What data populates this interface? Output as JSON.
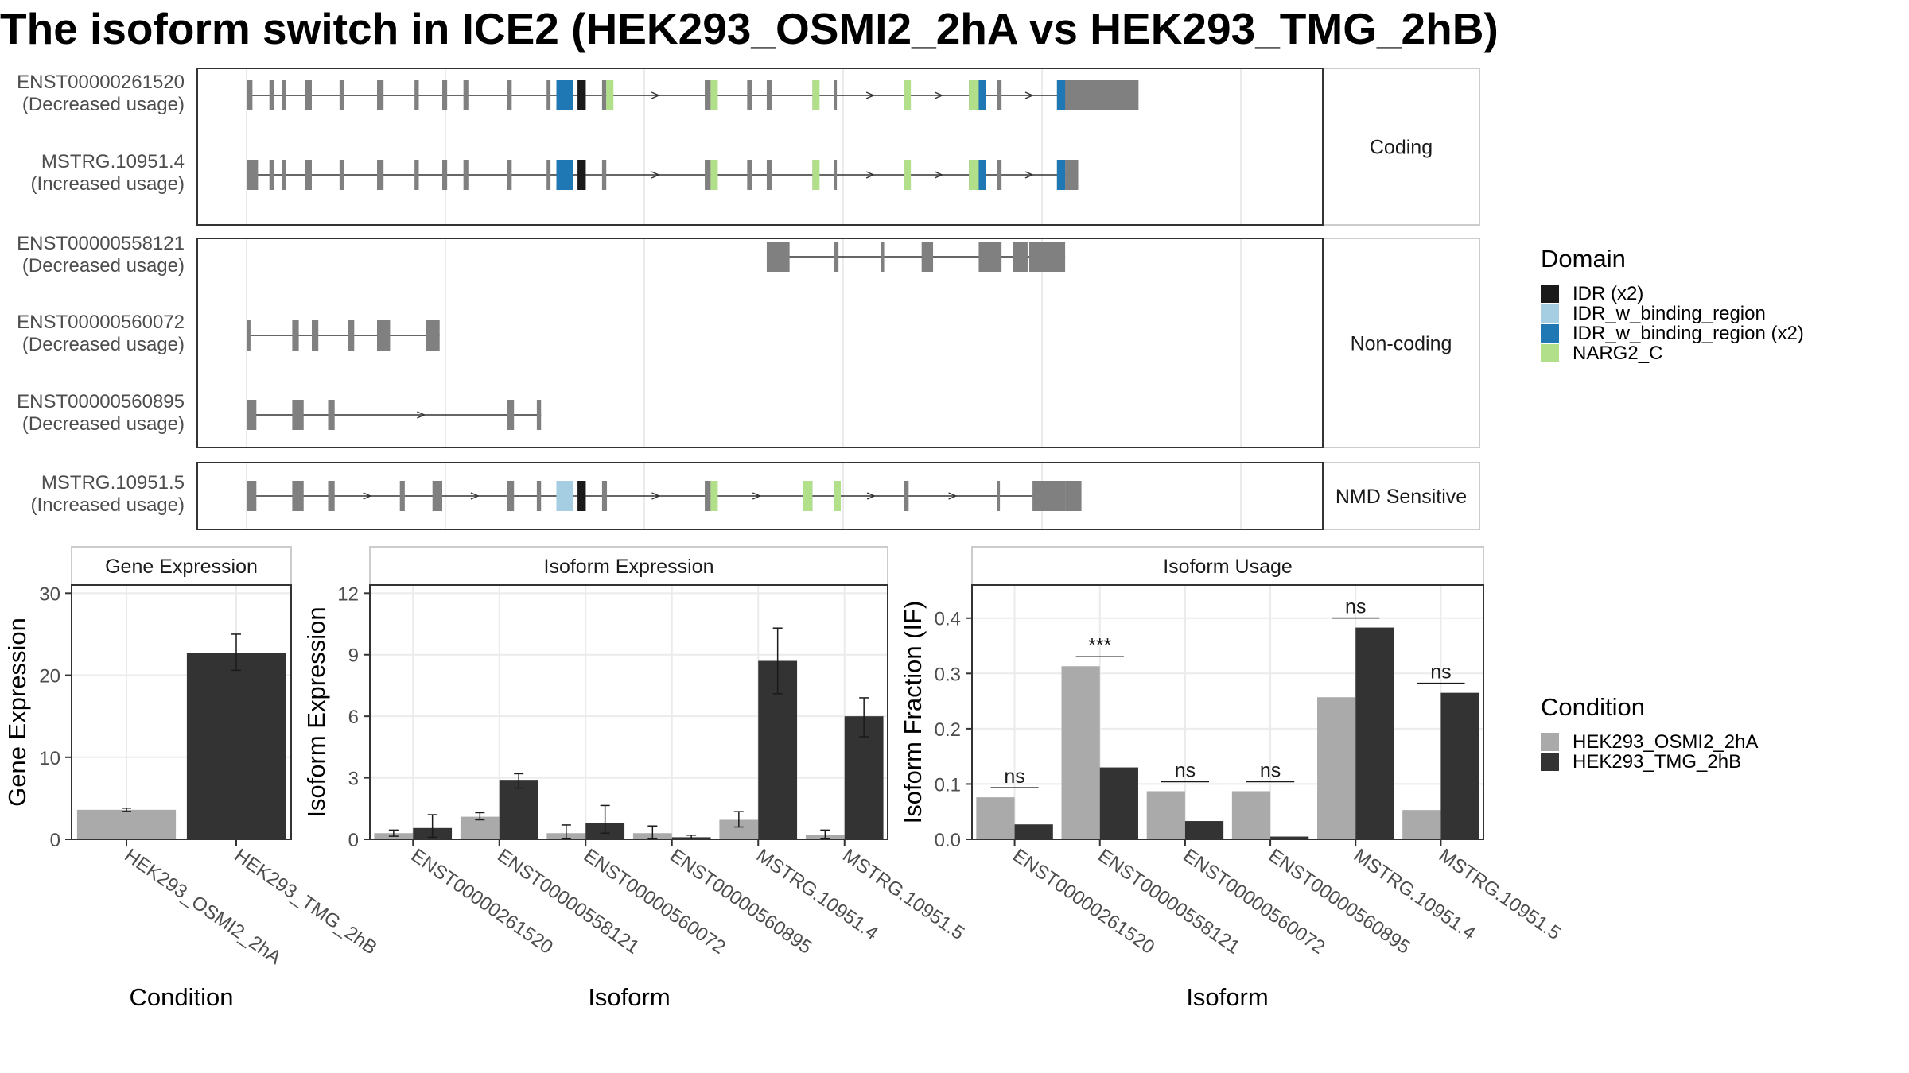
{
  "title": "The isoform switch in ICE2 (HEK293_OSMI2_2hA vs HEK293_TMG_2hB)",
  "colors": {
    "exon": "#808080",
    "IDR (x2)": "#1a1a1a",
    "IDR_w_binding_region": "#a6cee3",
    "IDR_w_binding_region (x2)": "#1f78b4",
    "NARG2_C": "#b2df8a",
    "cond_a": "#aaaaaa",
    "cond_b": "#333333",
    "panel_border": "#333333",
    "strip_border": "#cccccc",
    "grid": "#ebebeb"
  },
  "legend_domain": {
    "title": "Domain",
    "items": [
      "IDR (x2)",
      "IDR_w_binding_region",
      "IDR_w_binding_region (x2)",
      "NARG2_C"
    ]
  },
  "legend_condition": {
    "title": "Condition",
    "items": [
      "HEK293_OSMI2_2hA",
      "HEK293_TMG_2hB"
    ]
  },
  "chart_data": [
    {
      "type": "other",
      "name": "Transcript structures",
      "groups": [
        {
          "strip": "Coding",
          "transcripts": [
            {
              "id": "ENST00000261520",
              "note": "(Decreased usage)",
              "exons": [
                [
                  0,
                  1.8
                ],
                [
                  7,
                  8.3
                ],
                [
                  10.8,
                  12
                ],
                [
                  18,
                  20
                ],
                [
                  28.5,
                  30
                ],
                [
                  40,
                  42
                ],
                [
                  51.5,
                  52.8
                ],
                [
                  60,
                  61.5
                ],
                [
                  66.5,
                  68
                ],
                [
                  80,
                  81.3
                ],
                [
                  92,
                  93.2
                ],
                [
                  95,
                  100
                ],
                [
                  101.5,
                  104
                ],
                [
                  109,
                  110.3
                ],
                [
                  140.5,
                  142.3
                ],
                [
                  153.5,
                  155
                ],
                [
                  159.5,
                  161
                ],
                [
                  173.5,
                  175.5
                ],
                [
                  180,
                  181
                ],
                [
                  201.5,
                  203
                ],
                [
                  221.5,
                  224.5
                ],
                [
                  230,
                  231.5
                ],
                [
                  248.5,
                  255
                ],
                [
                  255,
                  273.5
                ]
              ],
              "domains": [
                {
                  "name": "IDR_w_binding_region (x2)",
                  "range": [
                    95,
                    100
                  ]
                },
                {
                  "name": "IDR (x2)",
                  "range": [
                    101.5,
                    104
                  ]
                },
                {
                  "name": "NARG2_C",
                  "range": [
                    110.3,
                    110.3
                  ]
                },
                {
                  "name": "NARG2_C",
                  "range": [
                    142.3,
                    142.3
                  ]
                },
                {
                  "name": "NARG2_C",
                  "range": [
                    173.5,
                    175.5
                  ]
                },
                {
                  "name": "NARG2_C",
                  "range": [
                    201.5,
                    203
                  ]
                },
                {
                  "name": "NARG2_C",
                  "range": [
                    221.5,
                    224.5
                  ]
                },
                {
                  "name": "IDR_w_binding_region (x2)",
                  "range": [
                    224.5,
                    225.5
                  ]
                },
                {
                  "name": "IDR_w_binding_region (x2)",
                  "range": [
                    248.5,
                    251
                  ]
                }
              ]
            },
            {
              "id": "MSTRG.10951.4",
              "note": "(Increased usage)",
              "exons": [
                [
                  0,
                  3.5
                ],
                [
                  7,
                  8.3
                ],
                [
                  10.8,
                  12
                ],
                [
                  18,
                  20
                ],
                [
                  28.5,
                  30
                ],
                [
                  40,
                  42
                ],
                [
                  51.5,
                  52.8
                ],
                [
                  60,
                  61.5
                ],
                [
                  66.5,
                  68
                ],
                [
                  80,
                  81.3
                ],
                [
                  92,
                  93.2
                ],
                [
                  95,
                  100
                ],
                [
                  101.5,
                  104
                ],
                [
                  109,
                  110.3
                ],
                [
                  140.5,
                  142.3
                ],
                [
                  153.5,
                  155
                ],
                [
                  159.5,
                  161
                ],
                [
                  173.5,
                  175.5
                ],
                [
                  180,
                  181
                ],
                [
                  201.5,
                  203
                ],
                [
                  221.5,
                  224.5
                ],
                [
                  230,
                  231.5
                ],
                [
                  248.5,
                  251
                ],
                [
                  251,
                  255
                ]
              ],
              "domains": [
                {
                  "name": "IDR_w_binding_region (x2)",
                  "range": [
                    95,
                    100
                  ]
                },
                {
                  "name": "IDR (x2)",
                  "range": [
                    101.5,
                    104
                  ]
                },
                {
                  "name": "NARG2_C",
                  "range": [
                    142.3,
                    142.3
                  ]
                },
                {
                  "name": "NARG2_C",
                  "range": [
                    173.5,
                    175.5
                  ]
                },
                {
                  "name": "NARG2_C",
                  "range": [
                    201.5,
                    203
                  ]
                },
                {
                  "name": "NARG2_C",
                  "range": [
                    221.5,
                    224.5
                  ]
                },
                {
                  "name": "IDR_w_binding_region (x2)",
                  "range": [
                    224.5,
                    225.5
                  ]
                },
                {
                  "name": "IDR_w_binding_region (x2)",
                  "range": [
                    248.5,
                    251
                  ]
                }
              ]
            }
          ]
        },
        {
          "strip": "Non-coding",
          "transcripts": [
            {
              "id": "ENST00000558121",
              "note": "(Decreased usage)",
              "exons": [
                [
                  159.5,
                  166.5
                ],
                [
                  180,
                  181.5
                ],
                [
                  194.5,
                  195.5
                ],
                [
                  207,
                  210.5
                ],
                [
                  224.5,
                  231.5
                ],
                [
                  235,
                  239.5
                ],
                [
                  240,
                  251
                ]
              ],
              "domains": []
            },
            {
              "id": "ENST00000560072",
              "note": "(Decreased usage)",
              "exons": [
                [
                  0,
                  1.2
                ],
                [
                  14,
                  16
                ],
                [
                  20,
                  22
                ],
                [
                  31,
                  33
                ],
                [
                  40,
                  44
                ],
                [
                  55,
                  59.2
                ]
              ],
              "domains": []
            },
            {
              "id": "ENST00000560895",
              "note": "(Decreased usage)",
              "exons": [
                [
                  0,
                  3
                ],
                [
                  14,
                  17.5
                ],
                [
                  25,
                  27
                ],
                [
                  80,
                  82
                ],
                [
                  89,
                  90.3
                ]
              ],
              "domains": []
            }
          ]
        },
        {
          "strip": "NMD Sensitive",
          "transcripts": [
            {
              "id": "MSTRG.10951.5",
              "note": "(Increased usage)",
              "exons": [
                [
                  0,
                  3
                ],
                [
                  14,
                  17.5
                ],
                [
                  25,
                  27
                ],
                [
                  47,
                  48.5
                ],
                [
                  57,
                  60
                ],
                [
                  80,
                  82
                ],
                [
                  89,
                  90.3
                ],
                [
                  95,
                  100
                ],
                [
                  101.5,
                  104
                ],
                [
                  109,
                  110.5
                ],
                [
                  140.5,
                  142.3
                ],
                [
                  170.5,
                  173.5
                ],
                [
                  180,
                  181.5
                ],
                [
                  201.5,
                  203
                ],
                [
                  230,
                  231
                ],
                [
                  241,
                  251
                ],
                [
                  251,
                  256
                ]
              ],
              "domains": [
                {
                  "name": "IDR_w_binding_region",
                  "range": [
                    95,
                    100
                  ]
                },
                {
                  "name": "IDR (x2)",
                  "range": [
                    101.5,
                    104
                  ]
                },
                {
                  "name": "NARG2_C",
                  "range": [
                    142.3,
                    142.3
                  ]
                },
                {
                  "name": "NARG2_C",
                  "range": [
                    170.5,
                    173.5
                  ]
                },
                {
                  "name": "NARG2_C",
                  "range": [
                    180,
                    181.5
                  ]
                }
              ]
            }
          ]
        }
      ]
    },
    {
      "type": "bar",
      "strip": "Gene Expression",
      "xlabel": "Condition",
      "ylabel": "Gene Expression",
      "ylim": [
        0,
        31
      ],
      "yticks": [
        0,
        10,
        20,
        30
      ],
      "categories": [
        "HEK293_OSMI2_2hA",
        "HEK293_TMG_2hB"
      ],
      "values": [
        3.6,
        22.7
      ],
      "errors": [
        [
          3.4,
          3.8
        ],
        [
          20.6,
          25.0
        ]
      ]
    },
    {
      "type": "bar",
      "strip": "Isoform Expression",
      "xlabel": "Isoform",
      "ylabel": "Isoform Expression",
      "ylim": [
        0,
        12.4
      ],
      "yticks": [
        0,
        3,
        6,
        9,
        12
      ],
      "categories": [
        "ENST00000261520",
        "ENST00000558121",
        "ENST00000560072",
        "ENST00000560895",
        "MSTRG.10951.4",
        "MSTRG.10951.5"
      ],
      "series": [
        {
          "name": "HEK293_OSMI2_2hA",
          "values": [
            0.3,
            1.1,
            0.3,
            0.3,
            0.95,
            0.2
          ],
          "errors": [
            [
              0.15,
              0.45
            ],
            [
              0.95,
              1.3
            ],
            [
              0.05,
              0.7
            ],
            [
              0.05,
              0.65
            ],
            [
              0.6,
              1.35
            ],
            [
              0.05,
              0.45
            ]
          ]
        },
        {
          "name": "HEK293_TMG_2hB",
          "values": [
            0.55,
            2.9,
            0.8,
            0.1,
            8.7,
            6.0
          ],
          "errors": [
            [
              0.1,
              1.2
            ],
            [
              2.5,
              3.2
            ],
            [
              0.3,
              1.65
            ],
            [
              0.0,
              0.2
            ],
            [
              7.1,
              10.3
            ],
            [
              5.0,
              6.9
            ]
          ]
        }
      ]
    },
    {
      "type": "bar",
      "strip": "Isoform Usage",
      "xlabel": "Isoform",
      "ylabel": "Isoform Fraction (IF)",
      "ylim": [
        0,
        0.46
      ],
      "yticks": [
        0.0,
        0.1,
        0.2,
        0.3,
        0.4
      ],
      "ytick_labels": [
        "0.0",
        "0.1",
        "0.2",
        "0.3",
        "0.4"
      ],
      "categories": [
        "ENST00000261520",
        "ENST00000558121",
        "ENST00000560072",
        "ENST00000560895",
        "MSTRG.10951.4",
        "MSTRG.10951.5"
      ],
      "series": [
        {
          "name": "HEK293_OSMI2_2hA",
          "values": [
            0.076,
            0.313,
            0.087,
            0.087,
            0.257,
            0.053
          ]
        },
        {
          "name": "HEK293_TMG_2hB",
          "values": [
            0.027,
            0.13,
            0.033,
            0.005,
            0.383,
            0.265
          ]
        }
      ],
      "annotations": [
        "ns",
        "***",
        "ns",
        "ns",
        "ns",
        "ns"
      ]
    }
  ]
}
